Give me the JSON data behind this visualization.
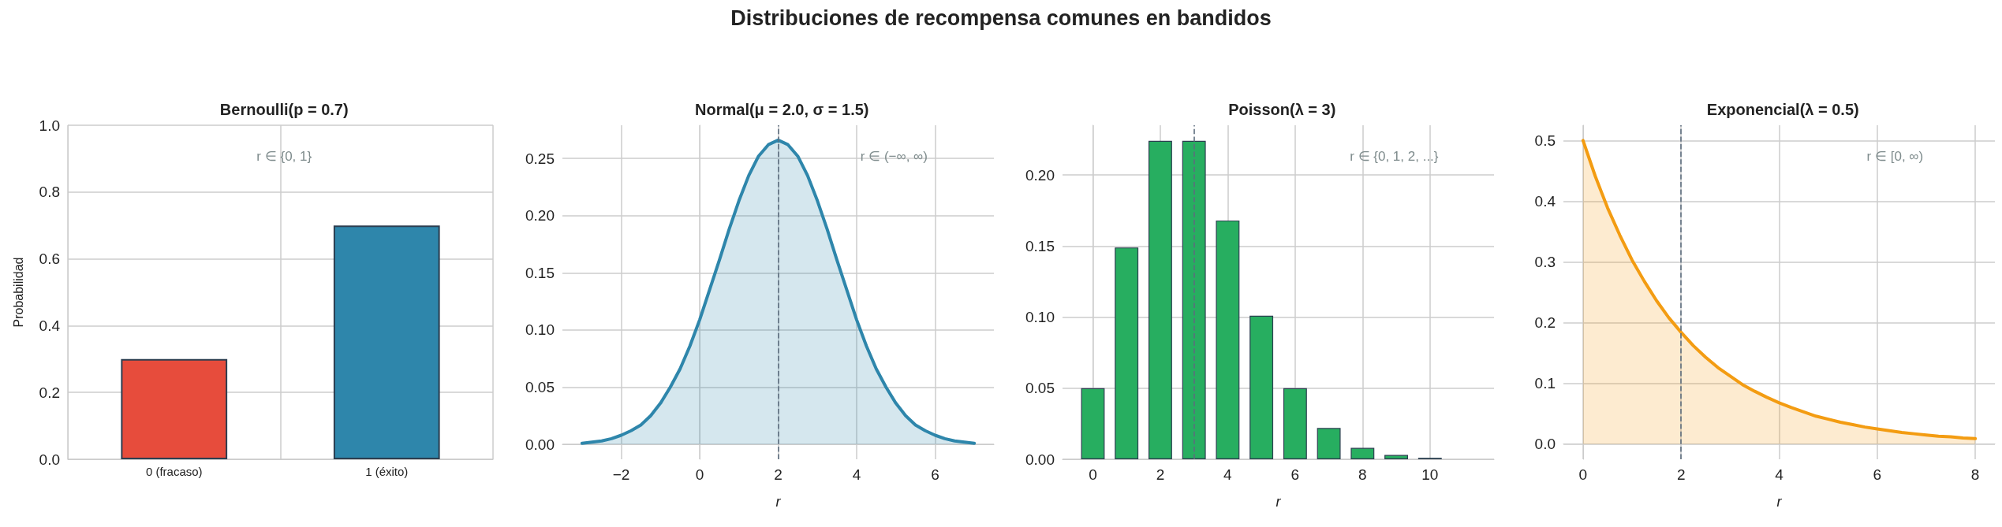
{
  "chart_data": [
    {
      "type": "bar",
      "title": "Bernoulli(p = 0.7)",
      "ylabel": "Probabilidad",
      "categories": [
        "0 (fracaso)",
        "1 (éxito)"
      ],
      "values": [
        0.3,
        0.7
      ],
      "colors": [
        "#e74c3c",
        "#2e86ab"
      ],
      "ylim": [
        0,
        1
      ],
      "yticks": [
        {
          "value": 0,
          "label": "0.0"
        },
        {
          "value": 0.2,
          "label": "0.2"
        },
        {
          "value": 0.4,
          "label": "0.4"
        },
        {
          "value": 0.6,
          "label": "0.6"
        },
        {
          "value": 0.8,
          "label": "0.8"
        },
        {
          "value": 1,
          "label": "1.0"
        }
      ],
      "grid": true,
      "annotations": [
        "r ∈ {0, 1}",
        "Distribuciones de recompensa comunes en bandidos"
      ]
    },
    {
      "type": "area",
      "title": "Normal(μ = 2.0, σ = 1.5)",
      "xlabel": "r",
      "color": "#2e86ab",
      "x": [
        -3,
        -2.75,
        -2.5,
        -2.25,
        -2,
        -1.75,
        -1.5,
        -1.25,
        -1,
        -0.75,
        -0.5,
        -0.25,
        0,
        0.25,
        0.5,
        0.75,
        1,
        1.25,
        1.5,
        1.75,
        2,
        2.25,
        2.5,
        2.75,
        3,
        3.25,
        3.5,
        3.75,
        4,
        4.25,
        4.5,
        4.75,
        5,
        5.25,
        5.5,
        5.75,
        6,
        6.25,
        6.5,
        6.75,
        7
      ],
      "values": [
        0.001,
        0.002,
        0.003,
        0.005,
        0.008,
        0.012,
        0.017,
        0.025,
        0.036,
        0.05,
        0.066,
        0.086,
        0.109,
        0.135,
        0.161,
        0.188,
        0.213,
        0.235,
        0.252,
        0.262,
        0.266,
        0.262,
        0.252,
        0.235,
        0.213,
        0.188,
        0.161,
        0.135,
        0.109,
        0.086,
        0.066,
        0.05,
        0.036,
        0.025,
        0.017,
        0.012,
        0.008,
        0.005,
        0.003,
        0.002,
        0.001
      ],
      "xlim": [
        -3.5,
        7.5
      ],
      "xticks": [
        {
          "value": -2,
          "label": "−2"
        },
        0,
        2,
        4,
        6
      ],
      "ylim": [
        -0.013,
        0.279
      ],
      "yticks": [
        {
          "value": 0,
          "label": "0.00"
        },
        {
          "value": 0.05,
          "label": "0.05"
        },
        {
          "value": 0.1,
          "label": "0.10"
        },
        {
          "value": 0.15,
          "label": "0.15"
        },
        {
          "value": 0.2,
          "label": "0.20"
        },
        {
          "value": 0.25,
          "label": "0.25"
        }
      ],
      "grid": true,
      "ref_lines": [
        {
          "axis": "x",
          "value": 2,
          "color": "#5d6d7e",
          "line_style": "dashed"
        }
      ],
      "annotations": [
        "r ∈ (−∞, ∞)"
      ]
    },
    {
      "type": "bar",
      "title": "Poisson(λ = 3)",
      "xlabel": "r",
      "color": "#27ae60",
      "x": [
        0,
        1,
        2,
        3,
        4,
        5,
        6,
        7,
        8,
        9,
        10
      ],
      "values": [
        0.05,
        0.149,
        0.224,
        0.224,
        0.168,
        0.101,
        0.05,
        0.022,
        0.008,
        0.003,
        0.001
      ],
      "xlim": [
        -0.9,
        11.9
      ],
      "xticks": [
        0,
        2,
        4,
        6,
        8,
        10
      ],
      "ylim": [
        0,
        0.235
      ],
      "yticks": [
        {
          "value": 0,
          "label": "0.00"
        },
        {
          "value": 0.05,
          "label": "0.05"
        },
        {
          "value": 0.1,
          "label": "0.10"
        },
        {
          "value": 0.15,
          "label": "0.15"
        },
        {
          "value": 0.2,
          "label": "0.20"
        }
      ],
      "grid": true,
      "ref_lines": [
        {
          "axis": "x",
          "value": 3,
          "color": "#5d6d7e",
          "line_style": "dashed"
        }
      ],
      "annotations": [
        "r ∈ {0, 1, 2, ...}"
      ]
    },
    {
      "type": "area",
      "title": "Exponencial(λ = 0.5)",
      "xlabel": "r",
      "color": "#f39c12",
      "x": [
        0,
        0.25,
        0.5,
        0.75,
        1,
        1.25,
        1.5,
        1.75,
        2,
        2.25,
        2.5,
        2.75,
        3,
        3.25,
        3.5,
        3.75,
        4,
        4.25,
        4.5,
        4.75,
        5,
        5.25,
        5.5,
        5.75,
        6,
        6.25,
        6.5,
        6.75,
        7,
        7.25,
        7.5,
        7.75,
        8
      ],
      "values": [
        0.5,
        0.441,
        0.389,
        0.344,
        0.303,
        0.268,
        0.236,
        0.208,
        0.184,
        0.162,
        0.143,
        0.126,
        0.112,
        0.098,
        0.087,
        0.077,
        0.068,
        0.06,
        0.053,
        0.046,
        0.041,
        0.036,
        0.032,
        0.028,
        0.025,
        0.022,
        0.019,
        0.017,
        0.015,
        0.013,
        0.012,
        0.01,
        0.009
      ],
      "xlim": [
        -0.4,
        8.4
      ],
      "xticks": [
        0,
        2,
        4,
        6,
        8
      ],
      "ylim": [
        -0.025,
        0.525
      ],
      "yticks": [
        {
          "value": 0,
          "label": "0.0"
        },
        {
          "value": 0.1,
          "label": "0.1"
        },
        {
          "value": 0.2,
          "label": "0.2"
        },
        {
          "value": 0.3,
          "label": "0.3"
        },
        {
          "value": 0.4,
          "label": "0.4"
        },
        {
          "value": 0.5,
          "label": "0.5"
        }
      ],
      "grid": true,
      "ref_lines": [
        {
          "axis": "x",
          "value": 2,
          "color": "#5d6d7e",
          "line_style": "dashed"
        }
      ],
      "annotations": [
        "r ∈ [0, ∞)"
      ]
    }
  ]
}
